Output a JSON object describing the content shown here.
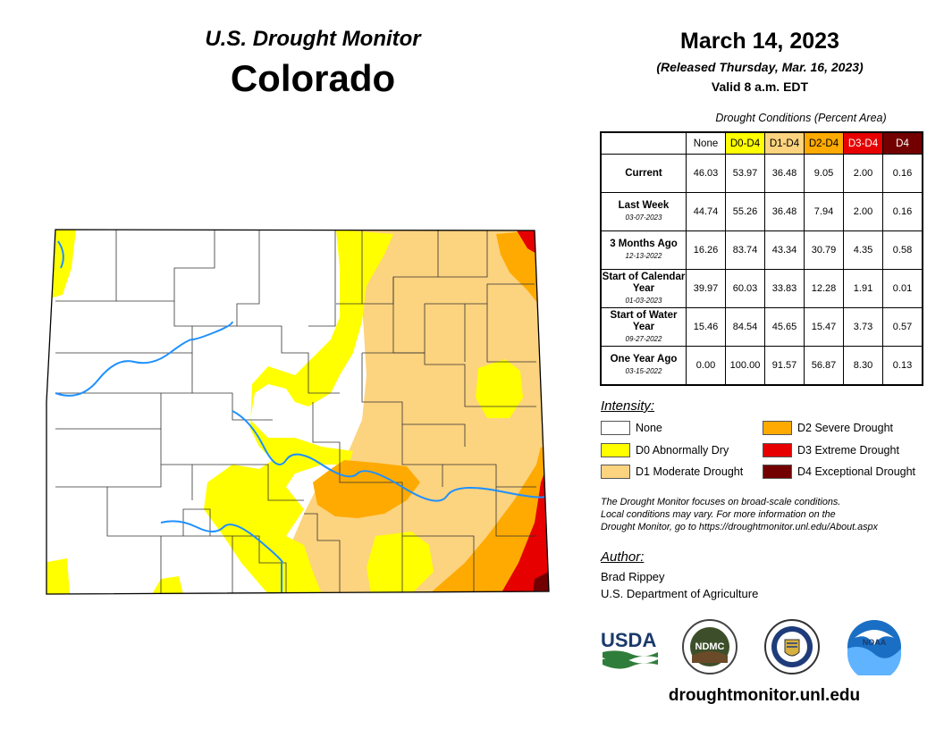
{
  "header": {
    "title": "U.S. Drought Monitor",
    "state": "Colorado",
    "date": "March 14, 2023",
    "released": "(Released Thursday, Mar. 16, 2023)",
    "valid": "Valid 8 a.m. EDT"
  },
  "table": {
    "caption": "Drought Conditions (Percent Area)",
    "columns": [
      "None",
      "D0-D4",
      "D1-D4",
      "D2-D4",
      "D3-D4",
      "D4"
    ],
    "rows": [
      {
        "label": "Current",
        "date": "",
        "values": [
          "46.03",
          "53.97",
          "36.48",
          "9.05",
          "2.00",
          "0.16"
        ]
      },
      {
        "label": "Last Week",
        "date": "03-07-2023",
        "values": [
          "44.74",
          "55.26",
          "36.48",
          "7.94",
          "2.00",
          "0.16"
        ]
      },
      {
        "label": "3 Months Ago",
        "date": "12-13-2022",
        "values": [
          "16.26",
          "83.74",
          "43.34",
          "30.79",
          "4.35",
          "0.58"
        ]
      },
      {
        "label": "Start of Calendar Year",
        "date": "01-03-2023",
        "values": [
          "39.97",
          "60.03",
          "33.83",
          "12.28",
          "1.91",
          "0.01"
        ]
      },
      {
        "label": "Start of Water Year",
        "date": "09-27-2022",
        "values": [
          "15.46",
          "84.54",
          "45.65",
          "15.47",
          "3.73",
          "0.57"
        ]
      },
      {
        "label": "One Year Ago",
        "date": "03-15-2022",
        "values": [
          "0.00",
          "100.00",
          "91.57",
          "56.87",
          "8.30",
          "0.13"
        ]
      }
    ]
  },
  "legend": {
    "title": "Intensity:",
    "items": [
      {
        "label": "None",
        "color": "#ffffff"
      },
      {
        "label": "D0 Abnormally Dry",
        "color": "#ffff00"
      },
      {
        "label": "D1 Moderate Drought",
        "color": "#fcd37f"
      },
      {
        "label": "D2 Severe Drought",
        "color": "#ffaa00"
      },
      {
        "label": "D3 Extreme Drought",
        "color": "#e60000"
      },
      {
        "label": "D4 Exceptional Drought",
        "color": "#730000"
      }
    ]
  },
  "note": {
    "line1": "The Drought Monitor focuses on broad-scale conditions.",
    "line2": "Local conditions may vary. For more information on the",
    "line3": "Drought Monitor, go to https://droughtmonitor.unl.edu/About.aspx"
  },
  "author": {
    "title": "Author:",
    "name": "Brad Rippey",
    "org": "U.S. Department of Agriculture"
  },
  "logos": {
    "usda": "USDA",
    "ndmc": "NDMC",
    "noaa": "NOAA"
  },
  "footer": {
    "url": "droughtmonitor.unl.edu"
  },
  "colors": {
    "none": "#ffffff",
    "d0": "#ffff00",
    "d1": "#fcd37f",
    "d2": "#ffaa00",
    "d3": "#e60000",
    "d4": "#730000",
    "river": "#1e90ff"
  }
}
